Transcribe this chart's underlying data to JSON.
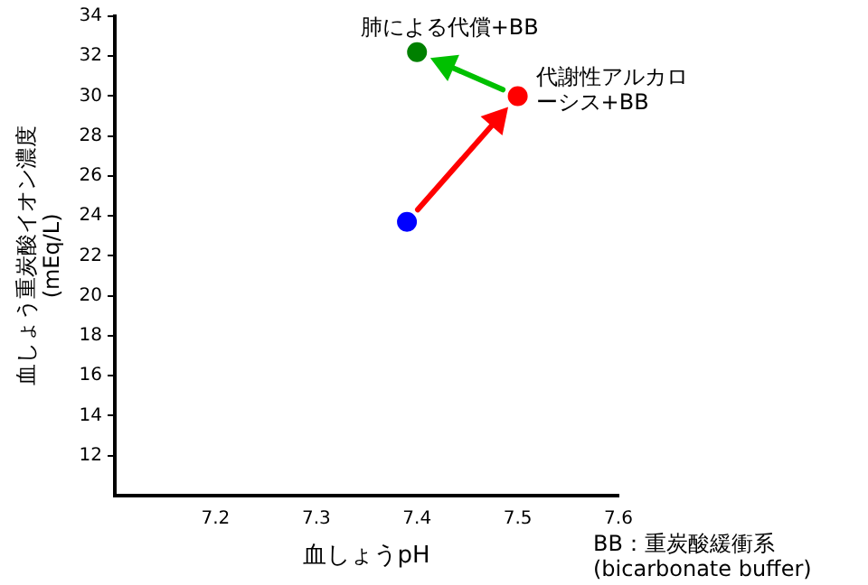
{
  "chart_data": {
    "type": "scatter",
    "xlabel": "血しょうpH",
    "ylabel": "血しょう重炭酸イオン濃度\n(mEq/L)",
    "x": [
      7.39,
      7.5,
      7.4
    ],
    "values": [
      23.7,
      30,
      32.2
    ],
    "colors": [
      "#0000ff",
      "#ff0000",
      "#008000"
    ],
    "xlim": [
      7.1,
      7.6
    ],
    "xticks": [
      7.2,
      7.3,
      7.4,
      7.5,
      7.6
    ],
    "ylim": [
      10,
      34
    ],
    "yticks": [
      12,
      14,
      16,
      18,
      20,
      22,
      24,
      26,
      28,
      30,
      32,
      34
    ],
    "grid": false,
    "legend": false,
    "marker": "circle",
    "annotations": [
      {
        "text": "肺による代償+BB",
        "x": 7.4,
        "y": 32.2
      },
      {
        "text": "代謝性アルカローシス+BB",
        "x": 7.5,
        "y": 30
      },
      "BB：重炭酸緩衝系\n(bicarbonate buffer)"
    ]
  }
}
